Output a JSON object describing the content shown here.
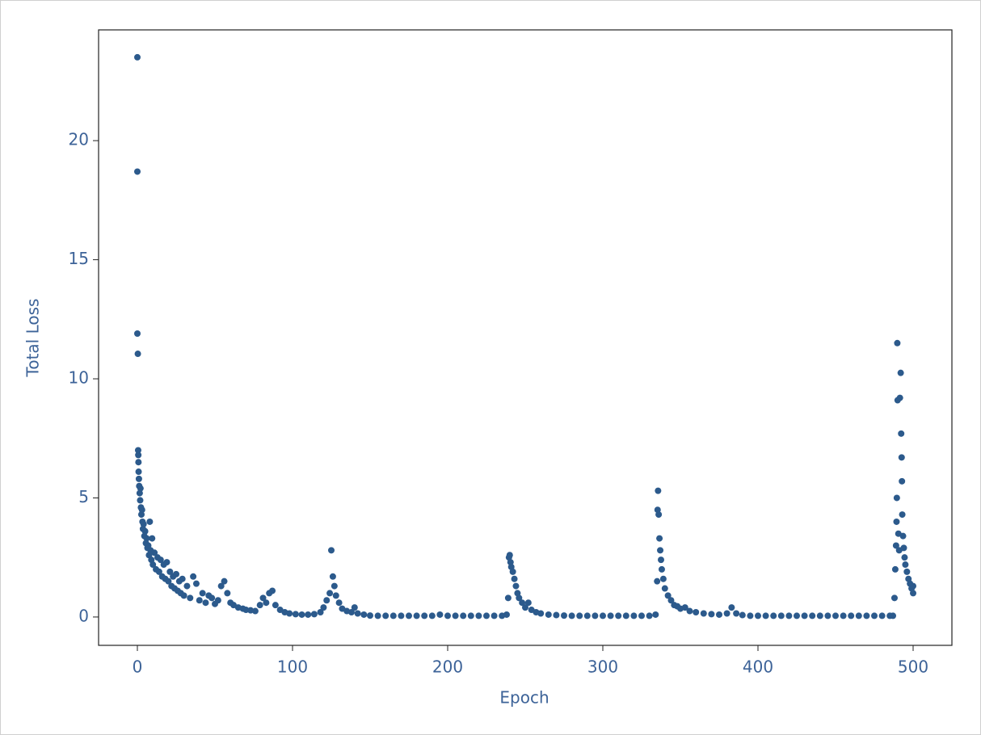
{
  "chart_data": {
    "type": "scatter",
    "x_label": "Epoch",
    "y_label": "Total Loss",
    "color": "#2c5a8c",
    "xlim": [
      -25,
      525
    ],
    "ylim": [
      -1.19,
      24.65
    ],
    "xticks": [
      0,
      100,
      200,
      300,
      400,
      500
    ],
    "yticks": [
      0,
      5,
      10,
      15,
      20
    ],
    "x": [
      0,
      0,
      0,
      0.3,
      0.5,
      0.6,
      0.7,
      0.8,
      1,
      1.2,
      1.5,
      1.8,
      2,
      2.3,
      2.6,
      3,
      3.3,
      3.6,
      4,
      4.5,
      5,
      5.5,
      6,
      6.5,
      7,
      7.5,
      8,
      8.5,
      9,
      9.5,
      10,
      11,
      12,
      13,
      14,
      15,
      16,
      17,
      18,
      19,
      20,
      21,
      22,
      23,
      24,
      25,
      26,
      27,
      28,
      29,
      30,
      32,
      34,
      36,
      38,
      40,
      42,
      44,
      46,
      48,
      50,
      52,
      54,
      56,
      58,
      60,
      62,
      65,
      68,
      70,
      73,
      76,
      79,
      81,
      83,
      85,
      87,
      89,
      92,
      95,
      98,
      102,
      106,
      110,
      114,
      118,
      120,
      122,
      124,
      125,
      126,
      127,
      128,
      130,
      132,
      135,
      138,
      140,
      142,
      146,
      150,
      155,
      160,
      165,
      170,
      175,
      180,
      185,
      190,
      195,
      200,
      205,
      210,
      215,
      220,
      225,
      230,
      235,
      238,
      239,
      239.5,
      240,
      240.5,
      241,
      242,
      243,
      244,
      245,
      246,
      248,
      250,
      252,
      254,
      257,
      260,
      265,
      270,
      275,
      280,
      285,
      290,
      295,
      300,
      305,
      310,
      315,
      320,
      325,
      330,
      334,
      335,
      335.3,
      335.6,
      336,
      336.5,
      337,
      337.5,
      338,
      339,
      340,
      342,
      344,
      346,
      348,
      350,
      353,
      356,
      360,
      365,
      370,
      375,
      380,
      383,
      386,
      390,
      395,
      400,
      405,
      410,
      415,
      420,
      425,
      430,
      435,
      440,
      445,
      450,
      455,
      460,
      465,
      470,
      475,
      480,
      485,
      487,
      488,
      488.5,
      489,
      489.3,
      489.5,
      489.8,
      490,
      490.5,
      491,
      491.5,
      492,
      492.3,
      492.6,
      492.8,
      493,
      493.5,
      494,
      494.5,
      495,
      496,
      497,
      498,
      499,
      500,
      500
    ],
    "values": [
      23.5,
      18.7,
      11.9,
      11.05,
      7.0,
      6.8,
      6.5,
      6.1,
      5.8,
      5.5,
      5.2,
      4.9,
      5.4,
      4.6,
      4.3,
      4.5,
      4.0,
      3.7,
      3.9,
      3.4,
      3.6,
      3.1,
      3.3,
      2.9,
      3.0,
      2.6,
      4.0,
      2.8,
      2.4,
      3.3,
      2.2,
      2.7,
      2.0,
      2.5,
      1.9,
      2.4,
      1.7,
      2.2,
      1.6,
      2.3,
      1.5,
      1.9,
      1.3,
      1.7,
      1.2,
      1.8,
      1.1,
      1.5,
      1.0,
      1.6,
      0.9,
      1.3,
      0.8,
      1.7,
      1.4,
      0.7,
      1.0,
      0.6,
      0.9,
      0.8,
      0.55,
      0.7,
      1.3,
      1.5,
      1.0,
      0.6,
      0.5,
      0.4,
      0.35,
      0.3,
      0.28,
      0.25,
      0.5,
      0.8,
      0.6,
      1.0,
      1.1,
      0.5,
      0.3,
      0.2,
      0.15,
      0.12,
      0.1,
      0.1,
      0.12,
      0.2,
      0.4,
      0.7,
      1.0,
      2.8,
      1.7,
      1.3,
      0.9,
      0.6,
      0.35,
      0.25,
      0.2,
      0.4,
      0.15,
      0.1,
      0.06,
      0.05,
      0.05,
      0.05,
      0.05,
      0.05,
      0.05,
      0.05,
      0.05,
      0.1,
      0.05,
      0.05,
      0.05,
      0.05,
      0.05,
      0.05,
      0.05,
      0.05,
      0.1,
      0.8,
      2.5,
      2.6,
      2.3,
      2.1,
      1.9,
      1.6,
      1.3,
      1.0,
      0.8,
      0.6,
      0.4,
      0.6,
      0.3,
      0.2,
      0.15,
      0.1,
      0.08,
      0.06,
      0.05,
      0.05,
      0.05,
      0.05,
      0.05,
      0.05,
      0.05,
      0.05,
      0.05,
      0.05,
      0.05,
      0.1,
      1.5,
      4.5,
      5.3,
      4.3,
      3.3,
      2.8,
      2.4,
      2.0,
      1.6,
      1.2,
      0.9,
      0.7,
      0.5,
      0.45,
      0.35,
      0.4,
      0.25,
      0.2,
      0.15,
      0.12,
      0.1,
      0.15,
      0.4,
      0.15,
      0.08,
      0.05,
      0.05,
      0.05,
      0.05,
      0.05,
      0.05,
      0.05,
      0.05,
      0.05,
      0.05,
      0.05,
      0.05,
      0.05,
      0.05,
      0.05,
      0.05,
      0.05,
      0.05,
      0.05,
      0.05,
      0.8,
      2.0,
      3.0,
      4.0,
      5.0,
      11.5,
      9.1,
      3.5,
      2.8,
      9.2,
      10.25,
      7.7,
      6.7,
      5.7,
      4.3,
      3.4,
      2.9,
      2.5,
      2.2,
      1.9,
      1.6,
      1.4,
      1.2,
      1.0,
      1.3
    ]
  }
}
